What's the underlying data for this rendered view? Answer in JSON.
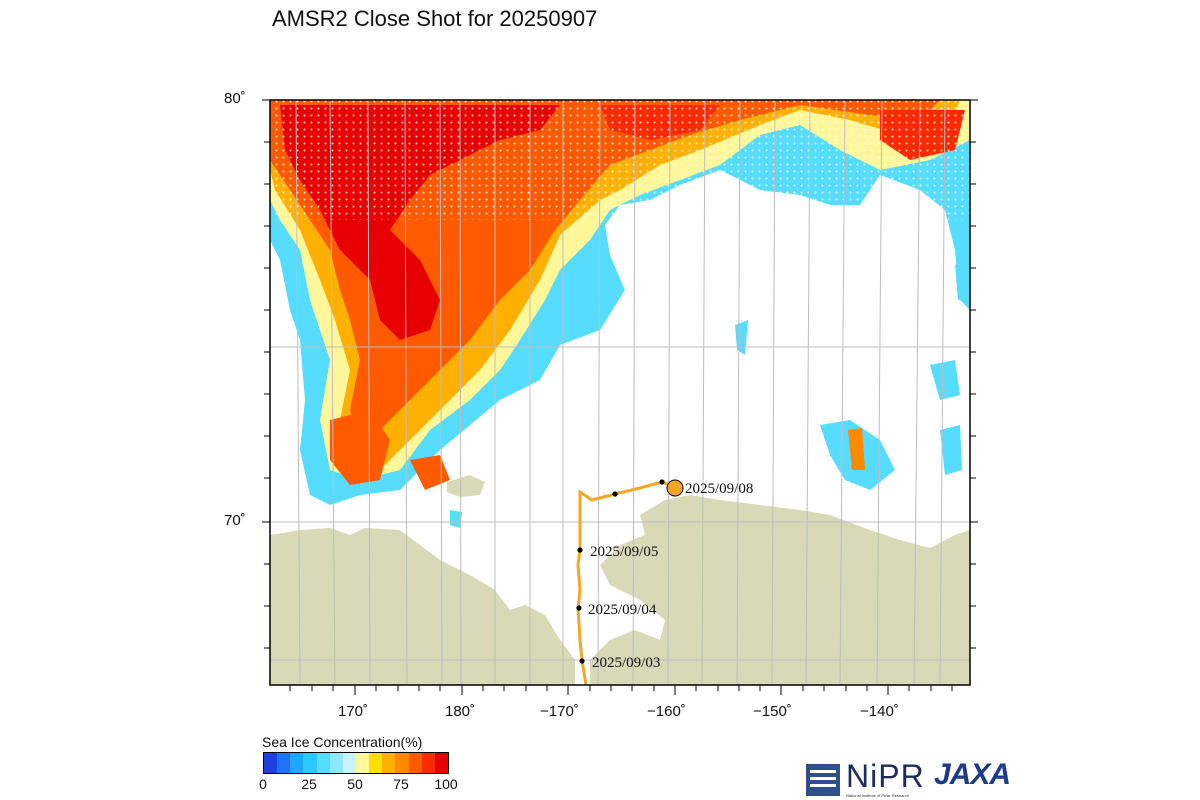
{
  "title": "AMSR2 Close Shot for 20250907",
  "axes": {
    "lat_labels": [
      "80˚",
      "70˚"
    ],
    "lon_labels": [
      "170˚",
      "180˚",
      "−170˚",
      "−160˚",
      "−150˚",
      "−140˚"
    ]
  },
  "route": {
    "labels": [
      "2025/09/08",
      "2025/09/05",
      "2025/09/04",
      "2025/09/03"
    ],
    "color": "#f5a623"
  },
  "legend": {
    "title": "Sea Ice Concentration(%)",
    "ticks": [
      "0",
      "25",
      "50",
      "75",
      "100"
    ],
    "colors": [
      "#1f3fe0",
      "#1e72ff",
      "#1ea8ff",
      "#2cc8ff",
      "#55dcff",
      "#8ee8ff",
      "#c8f4ff",
      "#fff79a",
      "#ffe000",
      "#ffb000",
      "#ff8a00",
      "#ff5a00",
      "#ff2a00",
      "#e80000"
    ]
  },
  "logos": {
    "nipr": "NiPR",
    "nipr_sub": "National Institute of Polar Research",
    "jaxa": "JAXA"
  },
  "colors": {
    "land": "#d9d9b8",
    "grid": "#bdbdbd"
  }
}
